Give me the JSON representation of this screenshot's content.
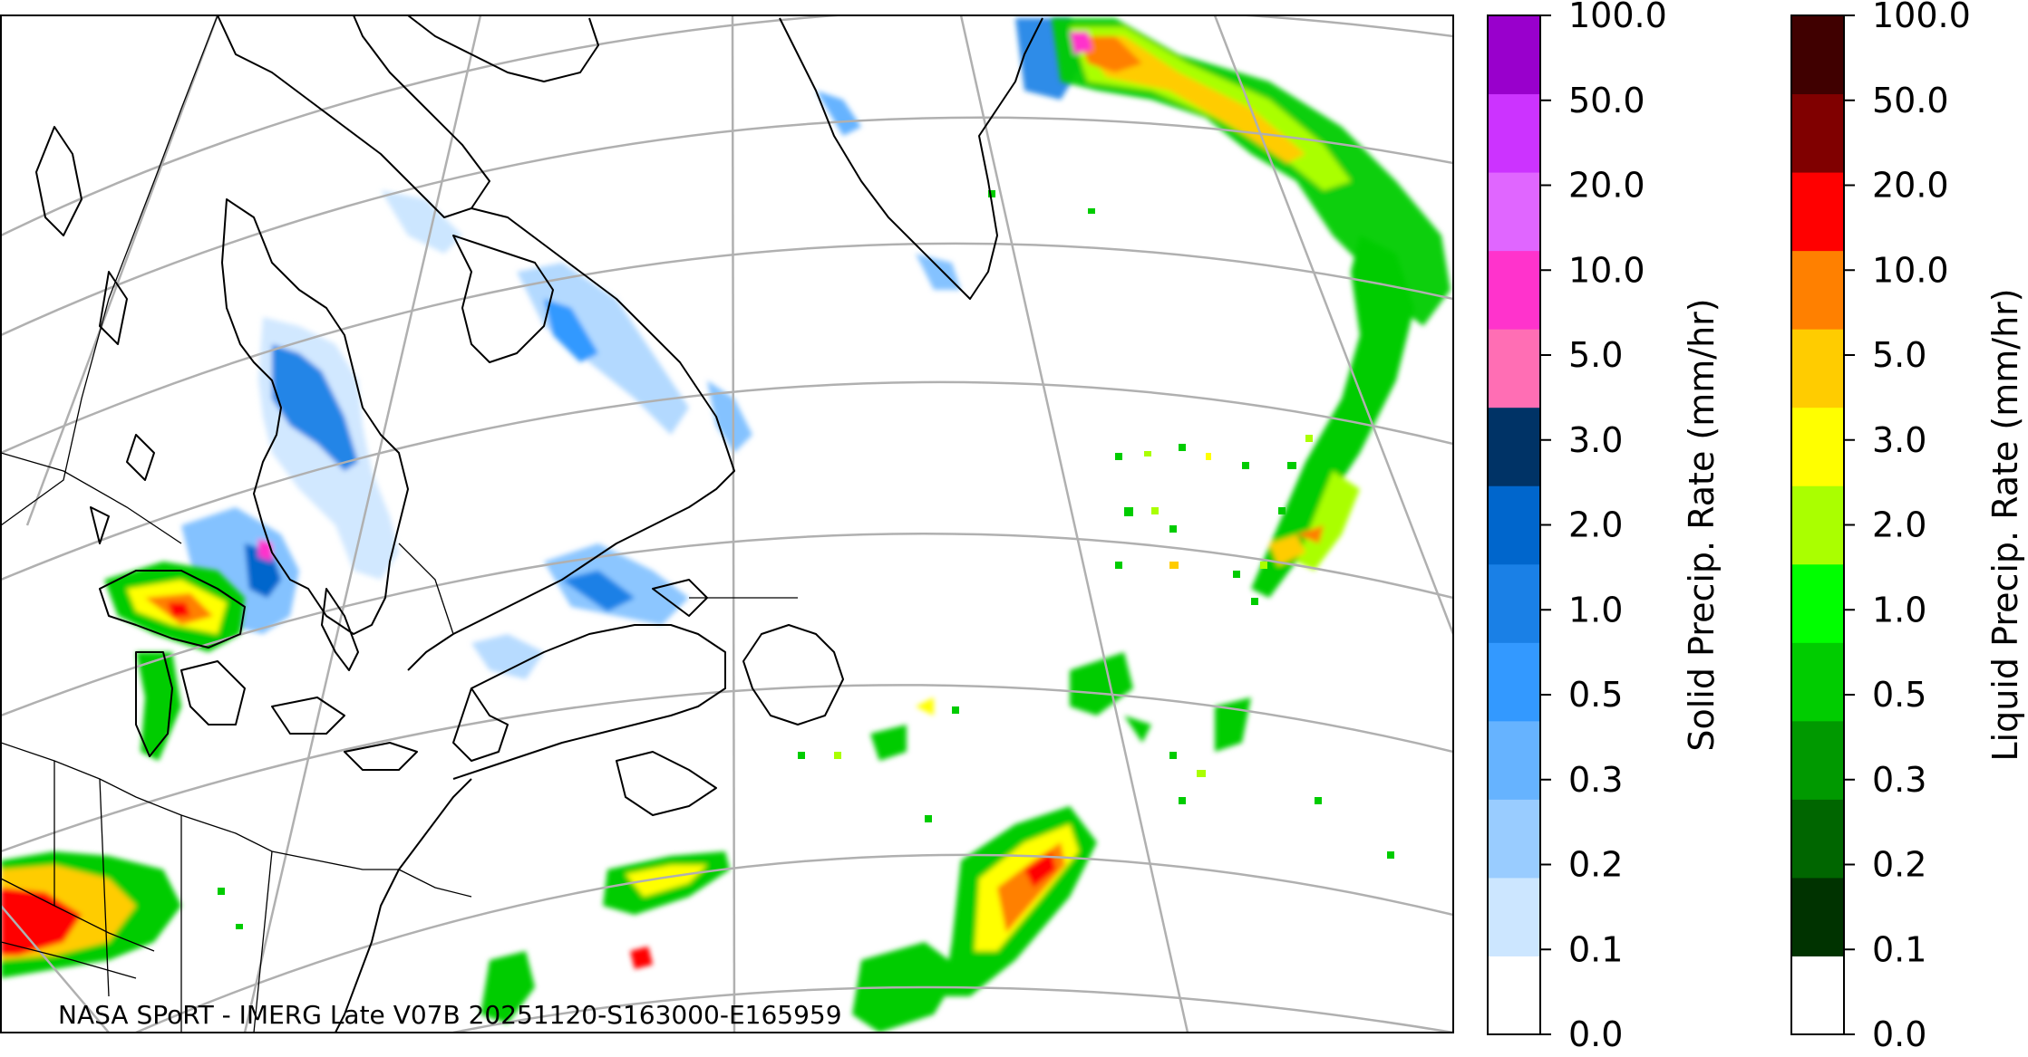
{
  "map": {
    "credit": "NASA SPoRT - IMERG Late V07B 20251120-S163000-E165959"
  },
  "colorbars": [
    {
      "label": "Solid Precip. Rate (mm/hr)",
      "ticks": [
        "0.0",
        "0.1",
        "0.2",
        "0.3",
        "0.5",
        "1.0",
        "2.0",
        "3.0",
        "5.0",
        "10.0",
        "20.0",
        "50.0",
        "100.0"
      ],
      "colors": [
        "#ffffff",
        "#cce6ff",
        "#99ccff",
        "#66b3ff",
        "#3399ff",
        "#1a80e6",
        "#0066cc",
        "#003366",
        "#ff6eb4",
        "#ff33cc",
        "#e066ff",
        "#cc33ff",
        "#9900cc"
      ]
    },
    {
      "label": "Liquid Precip. Rate (mm/hr)",
      "ticks": [
        "0.0",
        "0.1",
        "0.2",
        "0.3",
        "0.5",
        "1.0",
        "2.0",
        "3.0",
        "5.0",
        "10.0",
        "20.0",
        "50.0",
        "100.0"
      ],
      "colors": [
        "#ffffff",
        "#003300",
        "#006600",
        "#009900",
        "#00cc00",
        "#00ff00",
        "#aaff00",
        "#ffff00",
        "#ffcc00",
        "#ff8000",
        "#ff0000",
        "#800000",
        "#400000"
      ]
    }
  ],
  "precip_colors": {
    "snow_light": "#cce6ff",
    "snow_mid": "#66b3ff",
    "snow_heavy": "#1a80e6",
    "rain_green": "#00cc00",
    "rain_yellow": "#ffff00",
    "rain_orange": "#ff8000",
    "rain_red": "#ff0000"
  }
}
